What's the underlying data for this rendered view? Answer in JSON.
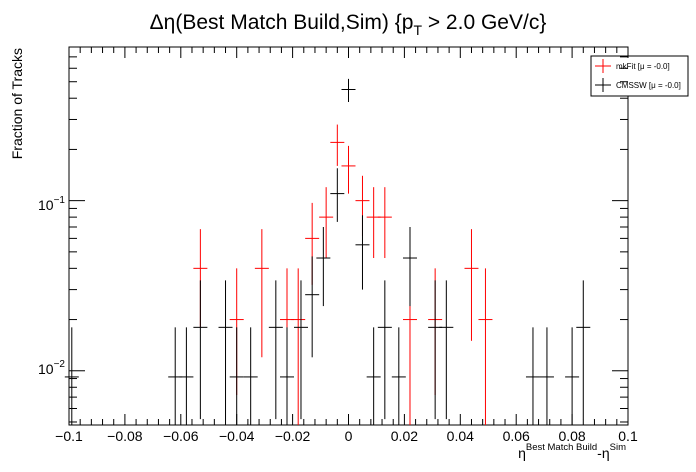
{
  "chart_data": {
    "type": "scatter",
    "title_main": "Δη(Best Match Build,Sim) {p",
    "title_sub": "T",
    "title_end": " > 2.0 GeV/c}",
    "ylabel": "Fraction of Tracks",
    "xlabel_main": "η",
    "xlabel_sup1": "Best Match Build",
    "xlabel_mid": "-η",
    "xlabel_sup2": "Sim",
    "xlim": [
      -0.1,
      0.1
    ],
    "ylim": [
      0.0048,
      0.8
    ],
    "yscale": "log",
    "xticks": [
      "−0.1",
      "−0.08",
      "−0.06",
      "−0.04",
      "−0.02",
      "0",
      "0.02",
      "0.04",
      "0.06",
      "0.08",
      "0.1"
    ],
    "ytick_labels": [
      {
        "mantissa": "10",
        "exp": "−1"
      },
      {
        "mantissa": "10",
        "exp": "−2"
      }
    ],
    "legend_position": "top-right",
    "series": [
      {
        "name": "mkFit  [μ = -0.0]",
        "color": "#ff0000",
        "points": [
          {
            "x": -0.053,
            "y": 0.04,
            "lo": 0.018,
            "hi": 0.068
          },
          {
            "x": -0.04,
            "y": 0.02,
            "lo": 0.0072,
            "hi": 0.04
          },
          {
            "x": -0.031,
            "y": 0.04,
            "lo": 0.012,
            "hi": 0.068
          },
          {
            "x": -0.022,
            "y": 0.02,
            "lo": 0.0072,
            "hi": 0.04
          },
          {
            "x": -0.018,
            "y": 0.02,
            "lo": 0.0048,
            "hi": 0.04
          },
          {
            "x": -0.013,
            "y": 0.06,
            "lo": 0.032,
            "hi": 0.097
          },
          {
            "x": -0.008,
            "y": 0.08,
            "lo": 0.046,
            "hi": 0.12
          },
          {
            "x": -0.004,
            "y": 0.22,
            "lo": 0.16,
            "hi": 0.28
          },
          {
            "x": 0.0,
            "y": 0.16,
            "lo": 0.11,
            "hi": 0.21
          },
          {
            "x": 0.005,
            "y": 0.1,
            "lo": 0.062,
            "hi": 0.14
          },
          {
            "x": 0.009,
            "y": 0.08,
            "lo": 0.046,
            "hi": 0.12
          },
          {
            "x": 0.013,
            "y": 0.08,
            "lo": 0.046,
            "hi": 0.12
          },
          {
            "x": 0.022,
            "y": 0.02,
            "lo": 0.0048,
            "hi": 0.04
          },
          {
            "x": 0.031,
            "y": 0.02,
            "lo": 0.0072,
            "hi": 0.04
          },
          {
            "x": 0.044,
            "y": 0.04,
            "lo": 0.015,
            "hi": 0.068
          },
          {
            "x": 0.049,
            "y": 0.02,
            "lo": 0.0048,
            "hi": 0.04
          }
        ]
      },
      {
        "name": "CMSSW  [μ = -0.0]",
        "color": "#000000",
        "points": [
          {
            "x": -0.099,
            "y": 0.0092,
            "lo": 0.0048,
            "hi": 0.018
          },
          {
            "x": -0.062,
            "y": 0.0092,
            "lo": 0.0048,
            "hi": 0.018
          },
          {
            "x": -0.058,
            "y": 0.0092,
            "lo": 0.0048,
            "hi": 0.018
          },
          {
            "x": -0.053,
            "y": 0.018,
            "lo": 0.0052,
            "hi": 0.034
          },
          {
            "x": -0.044,
            "y": 0.018,
            "lo": 0.0052,
            "hi": 0.034
          },
          {
            "x": -0.04,
            "y": 0.0092,
            "lo": 0.0048,
            "hi": 0.018
          },
          {
            "x": -0.035,
            "y": 0.0092,
            "lo": 0.0048,
            "hi": 0.018
          },
          {
            "x": -0.026,
            "y": 0.018,
            "lo": 0.0052,
            "hi": 0.034
          },
          {
            "x": -0.022,
            "y": 0.0092,
            "lo": 0.0048,
            "hi": 0.018
          },
          {
            "x": -0.017,
            "y": 0.018,
            "lo": 0.0052,
            "hi": 0.034
          },
          {
            "x": -0.013,
            "y": 0.028,
            "lo": 0.012,
            "hi": 0.047
          },
          {
            "x": -0.009,
            "y": 0.046,
            "lo": 0.024,
            "hi": 0.07
          },
          {
            "x": -0.004,
            "y": 0.11,
            "lo": 0.075,
            "hi": 0.155
          },
          {
            "x": 0.0,
            "y": 0.45,
            "lo": 0.38,
            "hi": 0.52
          },
          {
            "x": 0.005,
            "y": 0.055,
            "lo": 0.03,
            "hi": 0.082
          },
          {
            "x": 0.009,
            "y": 0.0092,
            "lo": 0.0048,
            "hi": 0.018
          },
          {
            "x": 0.013,
            "y": 0.018,
            "lo": 0.0052,
            "hi": 0.034
          },
          {
            "x": 0.018,
            "y": 0.0092,
            "lo": 0.0048,
            "hi": 0.018
          },
          {
            "x": 0.022,
            "y": 0.046,
            "lo": 0.024,
            "hi": 0.07
          },
          {
            "x": 0.031,
            "y": 0.018,
            "lo": 0.0052,
            "hi": 0.034
          },
          {
            "x": 0.035,
            "y": 0.018,
            "lo": 0.0052,
            "hi": 0.034
          },
          {
            "x": 0.066,
            "y": 0.0092,
            "lo": 0.0048,
            "hi": 0.018
          },
          {
            "x": 0.071,
            "y": 0.0092,
            "lo": 0.0048,
            "hi": 0.018
          },
          {
            "x": 0.08,
            "y": 0.0092,
            "lo": 0.0048,
            "hi": 0.018
          },
          {
            "x": 0.084,
            "y": 0.018,
            "lo": 0.0052,
            "hi": 0.034
          }
        ]
      }
    ]
  }
}
